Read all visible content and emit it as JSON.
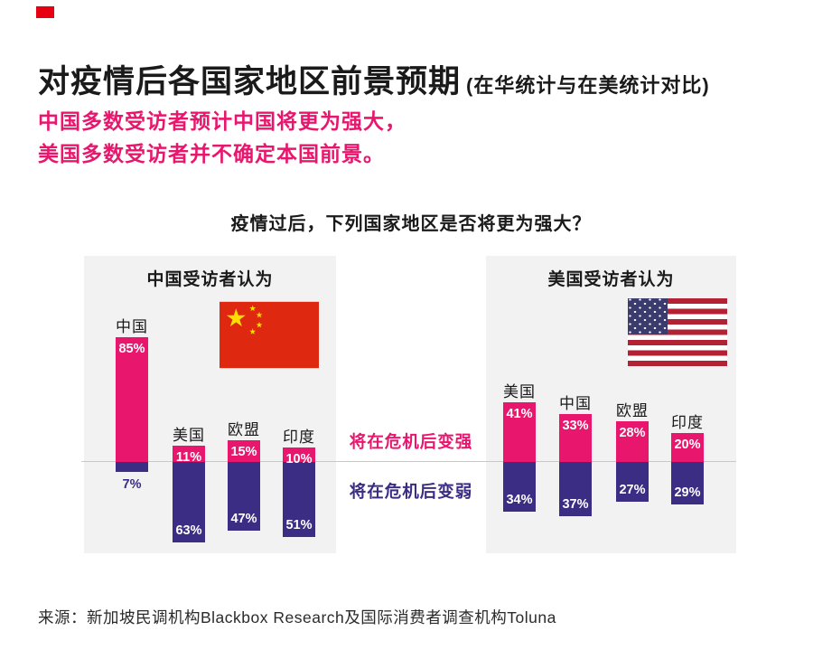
{
  "header": {
    "title": "对疫情后各国家地区前景预期",
    "title_suffix": "(在华统计与在美统计对比)",
    "subtitle_line1": "中国多数受访者预计中国将更为强大，",
    "subtitle_line2": "美国多数受访者并不确定本国前景。"
  },
  "chart_data": {
    "type": "bar",
    "title": "疫情过后，下列国家地区是否将更为强大？",
    "unit": "%",
    "orientation": "diverging-vertical",
    "legend": [
      {
        "label": "将在危机后变强",
        "color": "#e8176d",
        "direction": "up"
      },
      {
        "label": "将在危机后变弱",
        "color": "#3b2d83",
        "direction": "down"
      }
    ],
    "panels": [
      {
        "header": "中国受访者认为",
        "flag": "china-flag",
        "categories": [
          "中国",
          "美国",
          "欧盟",
          "印度"
        ],
        "series": [
          {
            "name": "将在危机后变强",
            "values": [
              85,
              11,
              15,
              10
            ]
          },
          {
            "name": "将在危机后变弱",
            "values": [
              7,
              63,
              47,
              51
            ]
          }
        ]
      },
      {
        "header": "美国受访者认为",
        "flag": "us-flag",
        "categories": [
          "美国",
          "中国",
          "欧盟",
          "印度"
        ],
        "series": [
          {
            "name": "将在危机后变强",
            "values": [
              41,
              33,
              28,
              20
            ]
          },
          {
            "name": "将在危机后变弱",
            "values": [
              34,
              37,
              27,
              29
            ]
          }
        ]
      }
    ]
  },
  "footer": {
    "source": "来源：新加坡民调机构Blackbox Research及国际消费者调查机构Toluna"
  },
  "colors": {
    "accent_pink": "#e8176d",
    "accent_purple": "#3b2d83",
    "panel_bg": "#f2f2f2",
    "baseline_gray": "#c8c8c8",
    "brand_red": "#e60012",
    "china_flag_red": "#de2910",
    "china_flag_yellow": "#ffde00",
    "us_flag_red": "#b22234",
    "us_flag_blue": "#3c3b6e"
  }
}
